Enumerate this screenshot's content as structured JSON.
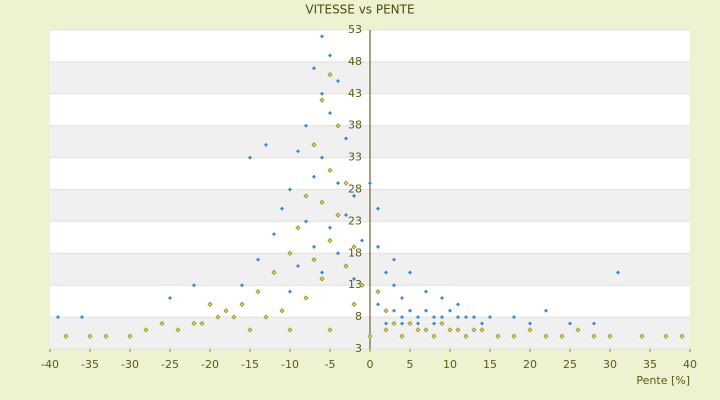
{
  "chart_data": {
    "type": "scatter",
    "title": "VITESSE vs PENTE",
    "x_label": "Pente [%]",
    "xlim": [
      -40,
      40
    ],
    "xticks": [
      -40,
      -35,
      -30,
      -25,
      -20,
      -15,
      -10,
      -5,
      0,
      5,
      10,
      15,
      20,
      25,
      30,
      35,
      40
    ],
    "ylim": [
      3,
      53
    ],
    "yticks": [
      3,
      8,
      13,
      18,
      23,
      28,
      33,
      38,
      43,
      48,
      53
    ],
    "grid": true,
    "series": [
      {
        "color": "#3d85d8",
        "x": [
          -6,
          -5,
          -7,
          -4,
          -6,
          -5,
          -8,
          -3,
          -9,
          -6,
          -5,
          -7,
          -4,
          -10,
          -2,
          -6,
          -11,
          -3,
          -8,
          -5,
          -12,
          -1,
          -7,
          -4,
          -14,
          -9,
          -6,
          -2,
          -16,
          -10,
          1,
          2,
          3,
          4,
          5,
          6,
          7,
          8,
          9,
          10,
          11,
          12,
          13,
          14,
          15,
          3,
          5,
          7,
          9,
          11,
          2,
          4,
          6,
          8,
          1,
          2,
          3,
          4,
          18,
          20,
          22,
          25,
          28,
          31,
          -20,
          -22,
          -25,
          -36,
          -39,
          0,
          1,
          -13,
          -15
        ],
        "y": [
          52,
          49,
          47,
          45,
          43,
          40,
          38,
          36,
          34,
          33,
          31,
          30,
          29,
          28,
          27,
          26,
          25,
          24,
          23,
          22,
          21,
          20,
          19,
          18,
          17,
          16,
          15,
          14,
          13,
          12,
          10,
          9,
          9,
          8,
          9,
          8,
          9,
          8,
          8,
          9,
          8,
          8,
          8,
          7,
          8,
          17,
          15,
          12,
          11,
          10,
          7,
          7,
          7,
          7,
          19,
          15,
          13,
          11,
          8,
          7,
          9,
          7,
          7,
          15,
          10,
          13,
          11,
          8,
          8,
          29,
          25,
          35,
          33
        ]
      },
      {
        "color": "#8a8a18",
        "x": [
          -5,
          -6,
          -4,
          -7,
          -5,
          -3,
          -8,
          -6,
          -4,
          -9,
          -5,
          -2,
          -10,
          -7,
          -3,
          -12,
          -6,
          -1,
          -14,
          -8,
          -16,
          -11,
          -18,
          -13,
          -20,
          -22,
          -24,
          -26,
          -28,
          -30,
          -33,
          -35,
          -38,
          -15,
          -10,
          -5,
          0,
          2,
          4,
          6,
          8,
          10,
          12,
          14,
          16,
          18,
          20,
          22,
          24,
          26,
          28,
          30,
          34,
          37,
          39,
          3,
          5,
          7,
          9,
          11,
          13,
          1,
          2,
          -2,
          -17,
          -19,
          -21
        ],
        "y": [
          46,
          42,
          38,
          35,
          31,
          29,
          27,
          26,
          24,
          22,
          20,
          19,
          18,
          17,
          16,
          15,
          14,
          13,
          12,
          11,
          10,
          9,
          9,
          8,
          10,
          7,
          6,
          7,
          6,
          5,
          5,
          5,
          5,
          6,
          6,
          6,
          5,
          6,
          5,
          6,
          5,
          6,
          5,
          6,
          5,
          5,
          6,
          5,
          5,
          6,
          5,
          5,
          5,
          5,
          5,
          7,
          7,
          6,
          7,
          6,
          6,
          12,
          9,
          10,
          8,
          8,
          7
        ]
      }
    ]
  }
}
